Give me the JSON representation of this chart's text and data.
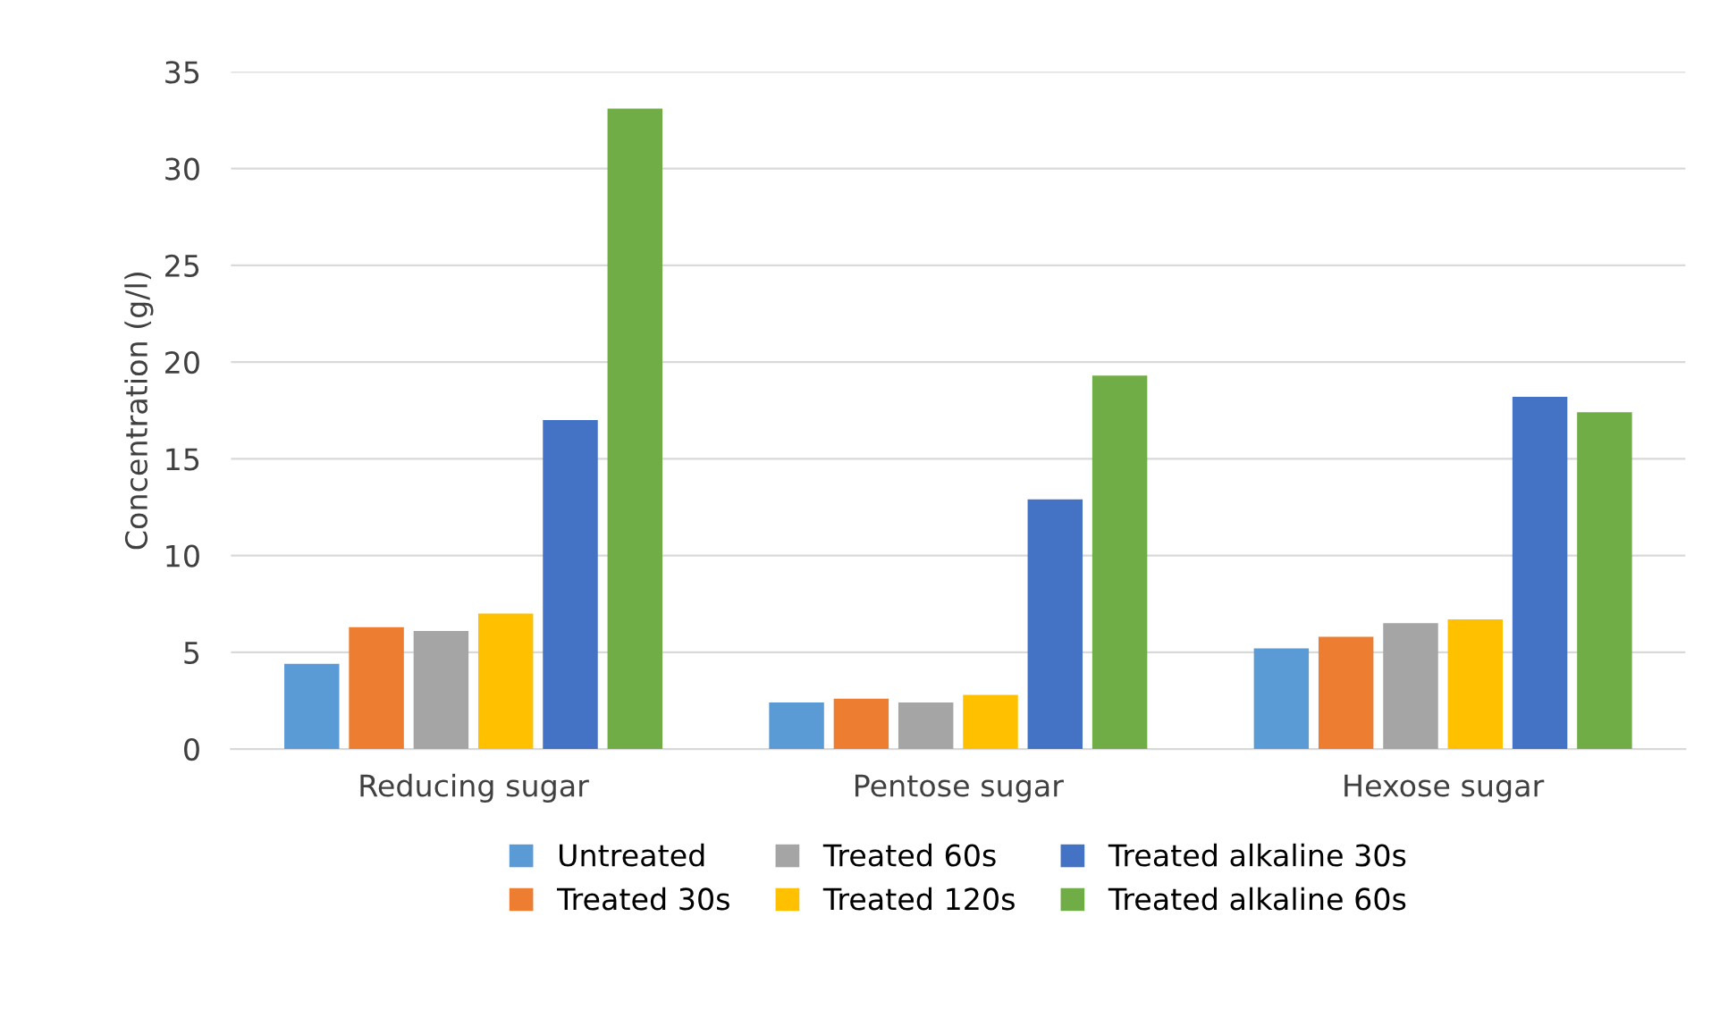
{
  "chart_data": {
    "type": "bar",
    "ylabel": "Concentration (g/l)",
    "categories": [
      "Reducing sugar",
      "Pentose sugar",
      "Hexose sugar"
    ],
    "series": [
      {
        "name": "Untreated",
        "color": "#5b9bd5",
        "values": [
          4.4,
          2.4,
          5.2
        ]
      },
      {
        "name": "Treated 30s",
        "color": "#ed7d31",
        "values": [
          6.3,
          2.6,
          5.8
        ]
      },
      {
        "name": "Treated 60s",
        "color": "#a5a5a5",
        "values": [
          6.1,
          2.4,
          6.5
        ]
      },
      {
        "name": "Treated 120s",
        "color": "#ffc000",
        "values": [
          7.0,
          2.8,
          6.7
        ]
      },
      {
        "name": "Treated alkaline 30s",
        "color": "#4472c4",
        "values": [
          17.0,
          12.9,
          18.2
        ]
      },
      {
        "name": "Treated alkaline 60s",
        "color": "#70ad47",
        "values": [
          33.1,
          19.3,
          17.4
        ]
      }
    ],
    "ylim": [
      0,
      35
    ],
    "yticks": [
      0,
      5,
      10,
      15,
      20,
      25,
      30,
      35
    ],
    "grid": "y",
    "legend": "bottom"
  }
}
